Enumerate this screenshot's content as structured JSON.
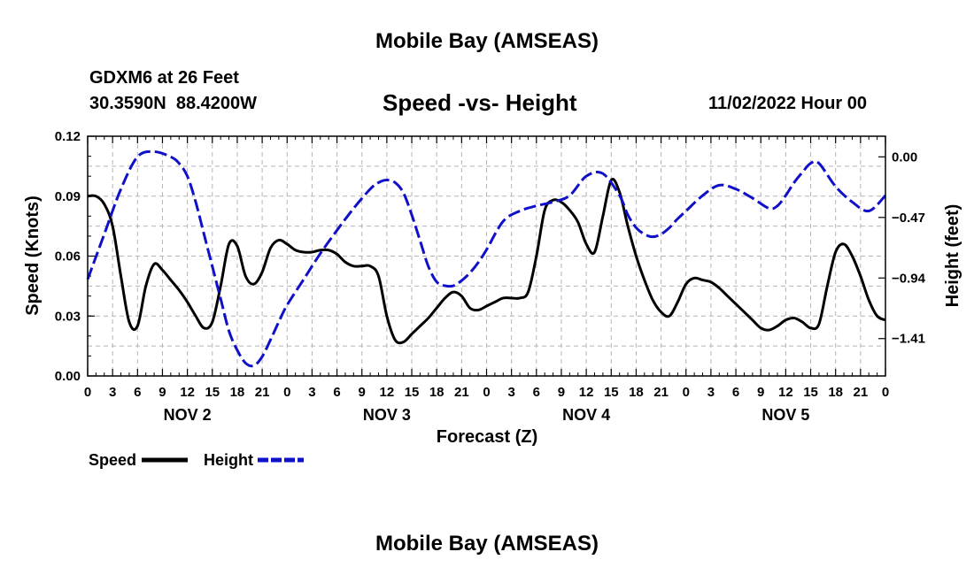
{
  "page": {
    "title": "Mobile Bay (AMSEAS)",
    "station": "GDXM6 at 26 Feet",
    "coords": "30.3590N  88.4200W",
    "subtitle": "Speed -vs- Height",
    "datetime": "11/02/2022 Hour 00",
    "footer_title": "Mobile Bay (AMSEAS)"
  },
  "colors": {
    "speed": "#000000",
    "height": "#1010c8",
    "grid": "#b4b4b4"
  },
  "chart_data": {
    "type": "line",
    "title": "Speed -vs- Height",
    "xlabel": "Forecast (Z)",
    "ylabel": "Speed (Knots)",
    "y2label": "Height (feet)",
    "x_range_hours": [
      0,
      96
    ],
    "ylim": [
      0,
      0.12
    ],
    "y_ticks": [
      0,
      0.03,
      0.06,
      0.09,
      0.12
    ],
    "y_tick_labels": [
      "0.00",
      "0.03",
      "0.06",
      "0.09",
      "0.12"
    ],
    "y2lim": [
      -1.7,
      0.16
    ],
    "y2_ticks": [
      0,
      -0.47,
      -0.94,
      -1.41
    ],
    "y2_tick_labels": [
      "0.00",
      "−0.47",
      "−0.94",
      "−1.41"
    ],
    "x_tick_hours": [
      0,
      3,
      6,
      9,
      12,
      15,
      18,
      21,
      24,
      27,
      30,
      33,
      36,
      39,
      42,
      45,
      48,
      51,
      54,
      57,
      60,
      63,
      66,
      69,
      72,
      75,
      78,
      81,
      84,
      87,
      90,
      93,
      96
    ],
    "x_tick_labels": [
      "0",
      "3",
      "6",
      "9",
      "12",
      "15",
      "18",
      "21",
      "0",
      "3",
      "6",
      "9",
      "12",
      "15",
      "18",
      "21",
      "0",
      "3",
      "6",
      "9",
      "12",
      "15",
      "18",
      "21",
      "0",
      "3",
      "6",
      "9",
      "12",
      "15",
      "18",
      "21",
      "0"
    ],
    "day_labels": [
      {
        "label": "NOV 2",
        "hour": 12
      },
      {
        "label": "NOV 3",
        "hour": 36
      },
      {
        "label": "NOV 4",
        "hour": 60
      },
      {
        "label": "NOV 5",
        "hour": 84
      }
    ],
    "legend": [
      {
        "name": "Speed",
        "style": "solid"
      },
      {
        "name": "Height",
        "style": "dashed"
      }
    ],
    "series": [
      {
        "name": "Speed",
        "axis": "left",
        "x": [
          0,
          1,
          2,
          3,
          4,
          5,
          6,
          7,
          8,
          9,
          10,
          11,
          12,
          13,
          14,
          15,
          16,
          17,
          18,
          19,
          20,
          21,
          22,
          23,
          24,
          25,
          26,
          27,
          28,
          29,
          30,
          31,
          32,
          33,
          34,
          35,
          36,
          37,
          38,
          39,
          40,
          41,
          42,
          43,
          44,
          45,
          46,
          47,
          48,
          49,
          50,
          51,
          52,
          53,
          54,
          55,
          56,
          57,
          58,
          59,
          60,
          61,
          62,
          63,
          64,
          65,
          66,
          67,
          68,
          69,
          70,
          71,
          72,
          73,
          74,
          75,
          76,
          77,
          78,
          79,
          80,
          81,
          82,
          83,
          84,
          85,
          86,
          87,
          88,
          89,
          90,
          91,
          92,
          93,
          94,
          95,
          96
        ],
        "values": [
          0.09,
          0.09,
          0.086,
          0.075,
          0.05,
          0.027,
          0.025,
          0.045,
          0.056,
          0.053,
          0.048,
          0.043,
          0.037,
          0.03,
          0.024,
          0.027,
          0.045,
          0.066,
          0.065,
          0.05,
          0.046,
          0.052,
          0.064,
          0.068,
          0.066,
          0.063,
          0.062,
          0.062,
          0.063,
          0.063,
          0.061,
          0.057,
          0.055,
          0.055,
          0.055,
          0.05,
          0.03,
          0.018,
          0.017,
          0.021,
          0.025,
          0.029,
          0.034,
          0.039,
          0.042,
          0.04,
          0.034,
          0.033,
          0.035,
          0.037,
          0.039,
          0.039,
          0.039,
          0.042,
          0.06,
          0.083,
          0.088,
          0.087,
          0.083,
          0.077,
          0.066,
          0.062,
          0.08,
          0.098,
          0.092,
          0.075,
          0.06,
          0.048,
          0.038,
          0.032,
          0.03,
          0.037,
          0.046,
          0.049,
          0.048,
          0.047,
          0.044,
          0.04,
          0.036,
          0.032,
          0.028,
          0.024,
          0.023,
          0.025,
          0.028,
          0.029,
          0.027,
          0.024,
          0.026,
          0.045,
          0.062,
          0.066,
          0.06,
          0.05,
          0.038,
          0.03,
          0.028
        ]
      },
      {
        "name": "Height",
        "axis": "right",
        "x": [
          0,
          2,
          4,
          6,
          8,
          10,
          11,
          12,
          13,
          14,
          15,
          16,
          17,
          18,
          19,
          20,
          21,
          22,
          23,
          24,
          26,
          28,
          30,
          32,
          34,
          35,
          36,
          37,
          38,
          39,
          40,
          41,
          42,
          43,
          44,
          45,
          46,
          47,
          48,
          50,
          52,
          54,
          56,
          58,
          60,
          62,
          64,
          65,
          66,
          67,
          68,
          69,
          70,
          71,
          72,
          74,
          76,
          78,
          80,
          82,
          83,
          84,
          85,
          86,
          87,
          88,
          90,
          92,
          94,
          96
        ],
        "values": [
          -0.95,
          -0.6,
          -0.25,
          0.0,
          0.04,
          0.0,
          -0.05,
          -0.15,
          -0.35,
          -0.6,
          -0.85,
          -1.1,
          -1.35,
          -1.5,
          -1.6,
          -1.62,
          -1.55,
          -1.42,
          -1.28,
          -1.15,
          -0.95,
          -0.75,
          -0.57,
          -0.4,
          -0.25,
          -0.2,
          -0.18,
          -0.2,
          -0.28,
          -0.45,
          -0.65,
          -0.85,
          -0.97,
          -1.0,
          -1.0,
          -0.96,
          -0.9,
          -0.82,
          -0.72,
          -0.5,
          -0.42,
          -0.38,
          -0.35,
          -0.3,
          -0.15,
          -0.13,
          -0.3,
          -0.45,
          -0.55,
          -0.6,
          -0.62,
          -0.6,
          -0.55,
          -0.48,
          -0.42,
          -0.3,
          -0.22,
          -0.25,
          -0.32,
          -0.4,
          -0.38,
          -0.3,
          -0.2,
          -0.12,
          -0.05,
          -0.05,
          -0.23,
          -0.35,
          -0.42,
          -0.3
        ]
      }
    ]
  }
}
